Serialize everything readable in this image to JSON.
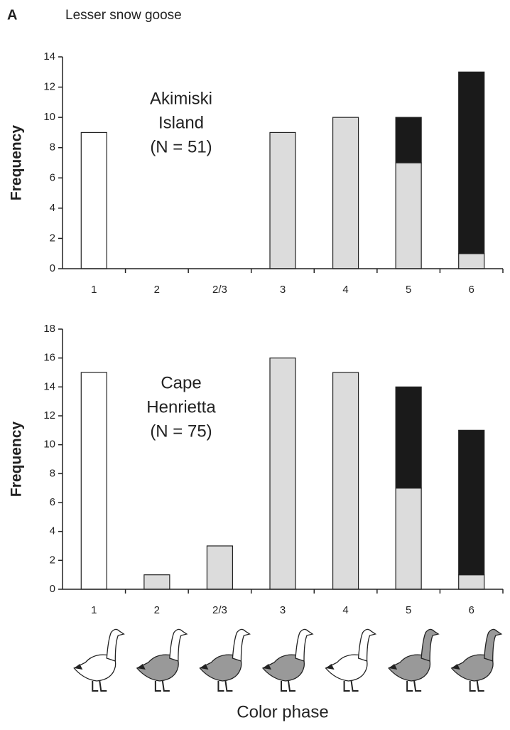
{
  "figure": {
    "label": "A",
    "title": "Lesser snow goose"
  },
  "chart_data": [
    {
      "type": "bar",
      "stacked": true,
      "y_label": "Frequency",
      "annotation": [
        "Akimiski",
        "Island",
        "(N = 51)"
      ],
      "categories": [
        "1",
        "2",
        "2/3",
        "3",
        "4",
        "5",
        "6"
      ],
      "series": [
        {
          "color": "#ffffff",
          "values": [
            9,
            null,
            null,
            null,
            null,
            null,
            null
          ]
        },
        {
          "color": "#dcdcdc",
          "values": [
            null,
            0,
            0,
            9,
            10,
            7,
            1
          ]
        },
        {
          "color": "#1a1a1a",
          "values": [
            null,
            null,
            null,
            null,
            null,
            3,
            12
          ]
        }
      ],
      "ylim": [
        0,
        14
      ],
      "yticks": [
        0,
        2,
        4,
        6,
        8,
        10,
        12,
        14
      ]
    },
    {
      "type": "bar",
      "stacked": true,
      "y_label": "Frequency",
      "x_label": "Color phase",
      "annotation": [
        "Cape",
        "Henrietta",
        "(N = 75)"
      ],
      "categories": [
        "1",
        "2",
        "2/3",
        "3",
        "4",
        "5",
        "6"
      ],
      "series": [
        {
          "color": "#ffffff",
          "values": [
            15,
            null,
            null,
            null,
            null,
            null,
            null
          ]
        },
        {
          "color": "#dcdcdc",
          "values": [
            null,
            1,
            3,
            16,
            15,
            7,
            1
          ]
        },
        {
          "color": "#1a1a1a",
          "values": [
            null,
            null,
            null,
            null,
            null,
            7,
            10
          ]
        }
      ],
      "ylim": [
        0,
        18
      ],
      "yticks": [
        0,
        2,
        4,
        6,
        8,
        10,
        12,
        14,
        16,
        18
      ]
    }
  ]
}
